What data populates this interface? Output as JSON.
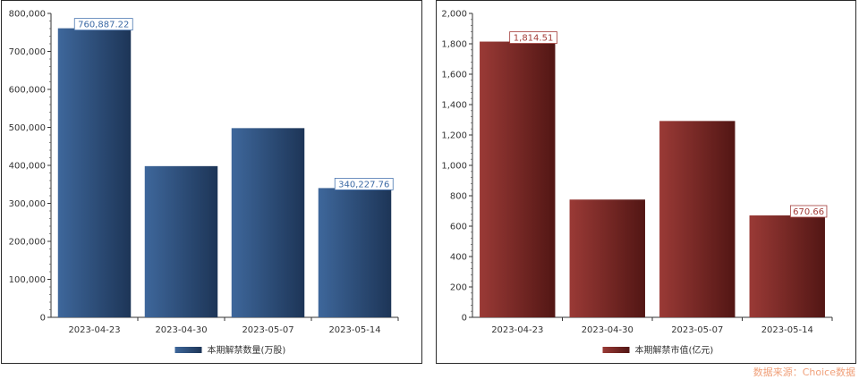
{
  "source_note": "数据来源：Choice数据",
  "chart_data": [
    {
      "type": "bar",
      "categories": [
        "2023-04-23",
        "2023-04-30",
        "2023-05-07",
        "2023-05-14"
      ],
      "series": [
        {
          "name": "本期解禁数量(万股)",
          "values": [
            760887.22,
            398000,
            498000,
            340227.76
          ]
        }
      ],
      "data_labels": [
        "760,887.22",
        "",
        "",
        "340,227.76"
      ],
      "y_ticks": [
        "0",
        "100,000",
        "200,000",
        "300,000",
        "400,000",
        "500,000",
        "600,000",
        "700,000",
        "800,000"
      ],
      "ylim": [
        0,
        800000
      ],
      "legend_position": "bottom",
      "colors": {
        "light": "#3e679b",
        "dark": "#1d3557",
        "label_border": "#4a76b0",
        "label_text": "#3d6aa5"
      }
    },
    {
      "type": "bar",
      "categories": [
        "2023-04-23",
        "2023-04-30",
        "2023-05-07",
        "2023-05-14"
      ],
      "series": [
        {
          "name": "本期解禁市值(亿元)",
          "values": [
            1814.51,
            775,
            1292,
            670.66
          ]
        }
      ],
      "data_labels": [
        "1,814.51",
        "",
        "",
        "670.66"
      ],
      "y_ticks": [
        "0",
        "200",
        "400",
        "600",
        "800",
        "1,000",
        "1,200",
        "1,400",
        "1,600",
        "1,800",
        "2,000"
      ],
      "ylim": [
        0,
        2000
      ],
      "legend_position": "bottom",
      "colors": {
        "light": "#9a3a36",
        "dark": "#521614",
        "label_border": "#a33c38",
        "label_text": "#a33c38"
      }
    }
  ]
}
